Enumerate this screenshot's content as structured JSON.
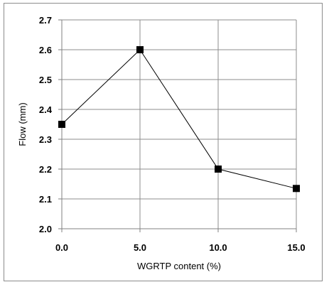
{
  "chart_data": {
    "type": "line",
    "x": [
      0.0,
      5.0,
      10.0,
      15.0
    ],
    "series": [
      {
        "values": [
          2.35,
          2.6,
          2.2,
          2.135
        ]
      }
    ],
    "xlabel": "WGRTP content (%)",
    "ylabel": "Flow (mm)",
    "xlim": [
      0,
      15
    ],
    "ylim": [
      2.0,
      2.7
    ],
    "x_ticks": [
      "0.0",
      "5.0",
      "10.0",
      "15.0"
    ],
    "y_ticks": [
      "2.0",
      "2.1",
      "2.2",
      "2.3",
      "2.4",
      "2.5",
      "2.6",
      "2.7"
    ],
    "grid": true,
    "marker": "square",
    "line_color": "#000000",
    "grid_color": "#8c8c8c"
  }
}
